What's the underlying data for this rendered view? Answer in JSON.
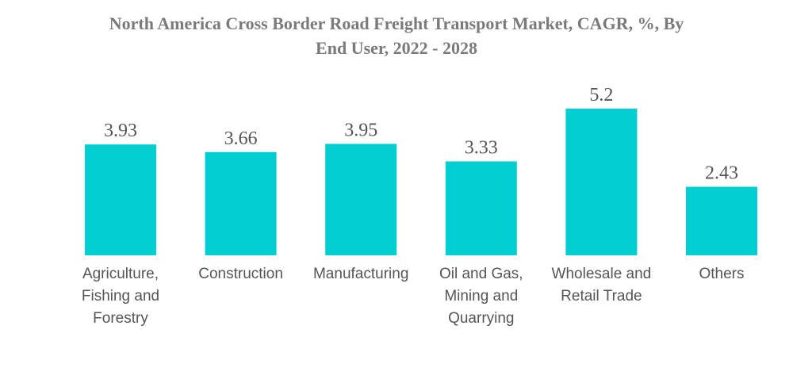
{
  "chart_data": {
    "type": "bar",
    "title_lines": [
      "North America Cross Border Road Freight Transport Market, CAGR, %, By",
      "End User, 2022 - 2028"
    ],
    "categories": [
      [
        "Agriculture,",
        "Fishing and",
        "Forestry"
      ],
      [
        "Construction"
      ],
      [
        "Manufacturing"
      ],
      [
        "Oil and Gas,",
        "Mining and",
        "Quarrying"
      ],
      [
        "Wholesale and",
        "Retail Trade"
      ],
      [
        "Others"
      ]
    ],
    "values": [
      3.93,
      3.66,
      3.95,
      3.33,
      5.2,
      2.43
    ],
    "value_labels": [
      "3.93",
      "3.66",
      "3.95",
      "3.33",
      "5.2",
      "2.43"
    ],
    "ylim": [
      0,
      5.2
    ],
    "grid": false,
    "legend": "none",
    "bar_color": "#00CED1",
    "title_color": "#7a7a7a",
    "label_color": "#555555"
  }
}
